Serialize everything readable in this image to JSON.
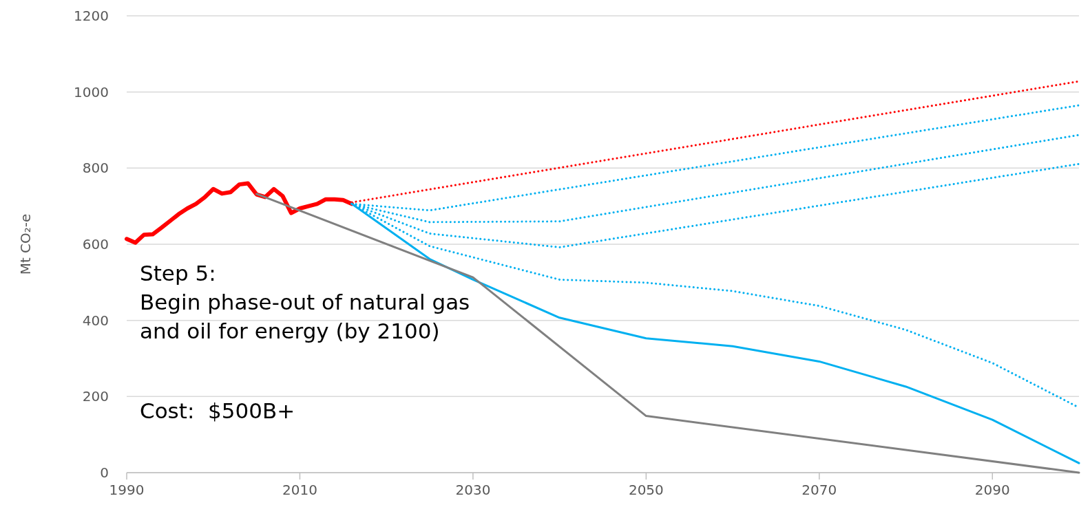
{
  "chart_data": {
    "type": "line",
    "ylabel": "Mt CO₂-e",
    "grid": "y",
    "xlim": [
      1990,
      2100
    ],
    "xticks": [
      1990,
      2010,
      2030,
      2050,
      2070,
      2090
    ],
    "ylim": [
      0,
      1200
    ],
    "yticks": [
      0,
      200,
      400,
      600,
      800,
      1000,
      1200
    ],
    "annotations": [
      "Step 5:\nBegin phase-out of natural gas\nand oil for energy (by 2100)",
      "Cost:  $500B+"
    ],
    "series": [
      {
        "color": "#ff0000",
        "line_style": "solid",
        "x": [
          1990,
          1991,
          1992,
          1993,
          1994,
          1995,
          1996,
          1997,
          1998,
          1999,
          2000,
          2001,
          2002,
          2003,
          2004,
          2005,
          2006,
          2007,
          2008,
          2009,
          2010,
          2011,
          2012,
          2013,
          2014,
          2015,
          2016
        ],
        "values": [
          614,
          604,
          625,
          626,
          643,
          661,
          679,
          694,
          706,
          723,
          745,
          733,
          737,
          757,
          760,
          731,
          724,
          745,
          727,
          682,
          694,
          700,
          706,
          718,
          718,
          716,
          706
        ]
      },
      {
        "color": "#ff0000",
        "line_style": "dotted",
        "x": [
          2016,
          2100
        ],
        "values": [
          710,
          1028
        ]
      },
      {
        "color": "#00b0f0",
        "line_style": "dotted",
        "x": [
          2016,
          2025,
          2100
        ],
        "values": [
          706,
          689,
          965
        ]
      },
      {
        "color": "#00b0f0",
        "line_style": "dotted",
        "x": [
          2016,
          2025,
          2040,
          2100
        ],
        "values": [
          706,
          658,
          660,
          887
        ]
      },
      {
        "color": "#00b0f0",
        "line_style": "dotted",
        "x": [
          2016,
          2025,
          2040,
          2100
        ],
        "values": [
          706,
          628,
          592,
          811
        ]
      },
      {
        "color": "#00b0f0",
        "line_style": "dotted",
        "x": [
          2016,
          2025,
          2040,
          2050,
          2060,
          2070,
          2080,
          2090,
          2100
        ],
        "values": [
          706,
          595,
          507,
          499,
          477,
          438,
          375,
          288,
          171
        ]
      },
      {
        "color": "#00b0f0",
        "line_style": "solid",
        "x": [
          2016,
          2025,
          2030,
          2040,
          2050,
          2060,
          2070,
          2080,
          2090,
          2100
        ],
        "values": [
          706,
          561,
          507,
          407,
          353,
          332,
          292,
          226,
          139,
          25
        ]
      },
      {
        "color": "#808080",
        "line_style": "solid",
        "x": [
          2005,
          2030,
          2050,
          2100
        ],
        "values": [
          732,
          513,
          149,
          0
        ]
      }
    ]
  }
}
